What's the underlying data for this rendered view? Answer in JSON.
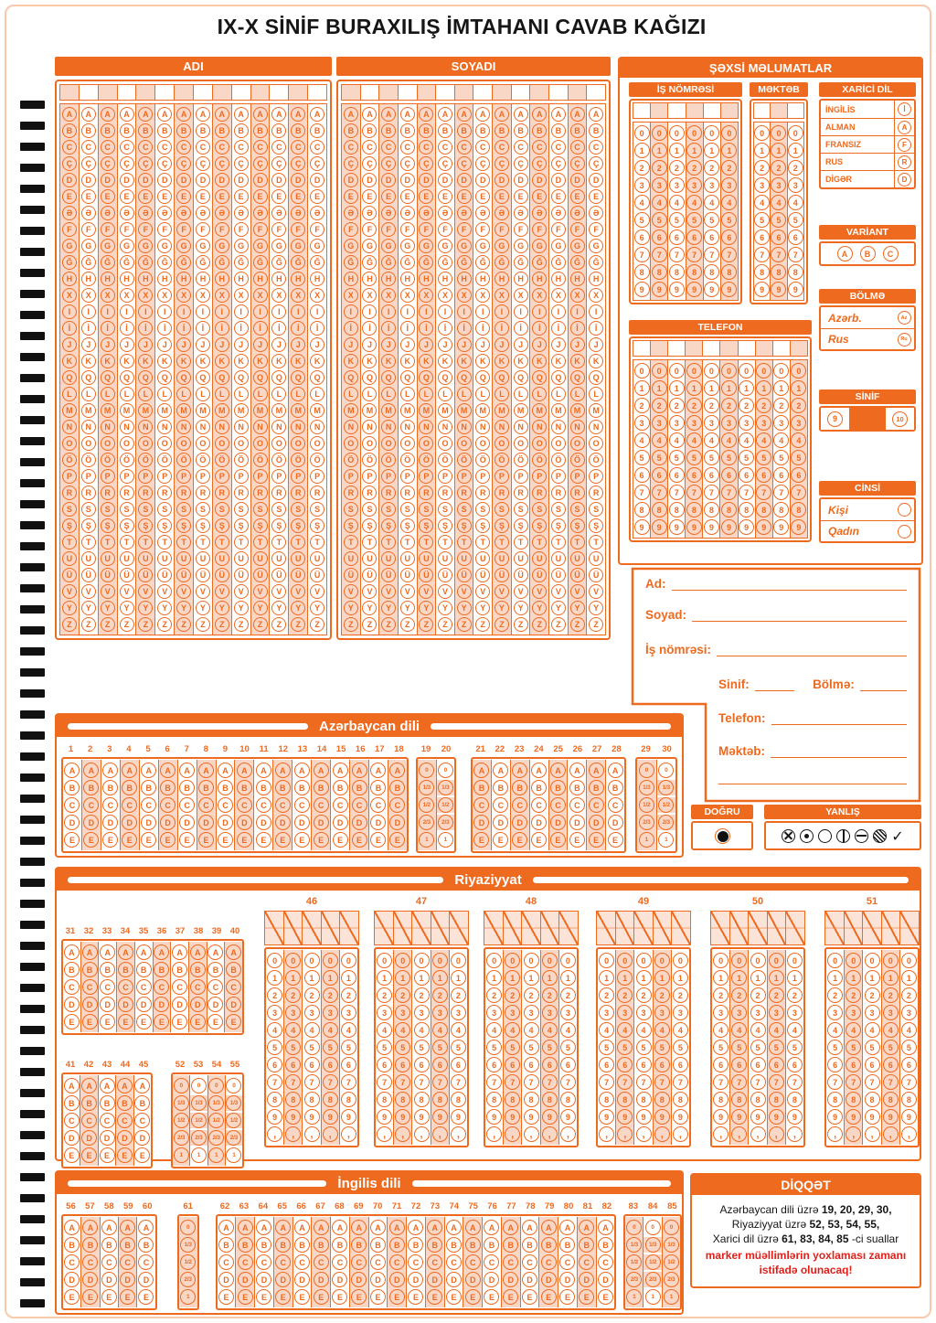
{
  "title": "IX-X SİNİF BURAXILIŞ İMTAHANI CAVAB KAĞIZI",
  "colors": {
    "accent": "#EE6A1F",
    "shade": "#F9D7C6",
    "warning_red": "#E31E18",
    "mark_black": "#111111"
  },
  "timing_marks": {
    "count": 58
  },
  "alphabet": [
    "A",
    "B",
    "C",
    "Ç",
    "D",
    "E",
    "Ə",
    "F",
    "G",
    "Ğ",
    "H",
    "X",
    "I",
    "İ",
    "J",
    "K",
    "Q",
    "L",
    "M",
    "N",
    "O",
    "Ö",
    "P",
    "R",
    "S",
    "Ş",
    "T",
    "U",
    "Ü",
    "V",
    "Y",
    "Z"
  ],
  "digits": [
    "0",
    "1",
    "2",
    "3",
    "4",
    "5",
    "6",
    "7",
    "8",
    "9"
  ],
  "choice_letters": [
    "A",
    "B",
    "C",
    "D",
    "E"
  ],
  "fractions": [
    "0",
    "1/3",
    "1/2",
    "2/3",
    "1"
  ],
  "decimal_comma": ",",
  "name_grid": {
    "title": "ADI",
    "columns": 14,
    "shade_start": true
  },
  "surname_grid": {
    "title": "SOYADI",
    "columns": 14,
    "shade_start": true
  },
  "personal": {
    "title": "ŞƏXSİ MƏLUMATLAR",
    "work_number": {
      "title": "İŞ NÖMRƏSİ",
      "columns": 6,
      "shade_start": false
    },
    "school": {
      "title": "MƏKTƏB",
      "columns": 3,
      "shade_start": false
    },
    "phone": {
      "title": "TELEFON",
      "columns": 10,
      "shade_start": false
    },
    "foreign_language": {
      "title": "XARİCİ DİL",
      "options": [
        {
          "label": "İNGİLİS",
          "bubble": "İ"
        },
        {
          "label": "ALMAN",
          "bubble": "A"
        },
        {
          "label": "FRANSIZ",
          "bubble": "F"
        },
        {
          "label": "RUS",
          "bubble": "R"
        },
        {
          "label": "DİGƏR",
          "bubble": "D"
        }
      ]
    },
    "variant": {
      "title": "VARİANT",
      "options": [
        "A",
        "B",
        "C"
      ]
    },
    "section": {
      "title": "BÖLMƏ",
      "options": [
        {
          "label": "Azərb.",
          "bubble": "Az"
        },
        {
          "label": "Rus",
          "bubble": "Ru"
        }
      ]
    },
    "grade": {
      "title": "SİNİF",
      "options": [
        "9",
        "10"
      ]
    },
    "gender": {
      "title": "CİNSİ",
      "options": [
        "Kişi",
        "Qadın"
      ]
    }
  },
  "write_in": {
    "name_label": "Ad:",
    "surname_label": "Soyad:",
    "work_number_label": "İş nömrəsi:",
    "grade_label": "Sinif:",
    "section_label": "Bölmə:",
    "phone_label": "Telefon:",
    "school_label": "Məktəb:"
  },
  "marking": {
    "correct_title": "DOĞRU",
    "wrong_title": "YANLIŞ",
    "wrong_icons": [
      "crossed-circle",
      "dot-circle",
      "empty-circle",
      "vertical-line-circle",
      "horizontal-line-circle",
      "hatched-circle",
      "checkmark"
    ],
    "checkmark_glyph": "✓"
  },
  "subjects": [
    {
      "title": "Azərbaycan dili",
      "blocks": [
        {
          "kind": "choice",
          "start": 1,
          "end": 18,
          "shade_start": false
        },
        {
          "kind": "fraction",
          "start": 19,
          "end": 20,
          "shade_start": true
        },
        {
          "kind": "choice",
          "start": 21,
          "end": 28,
          "shade_start": true
        },
        {
          "kind": "fraction",
          "start": 29,
          "end": 30,
          "shade_start": true
        }
      ]
    },
    {
      "title": "Riyaziyyat",
      "blocks": [
        {
          "kind": "choice",
          "start": 31,
          "end": 40,
          "shade_start": false
        },
        {
          "kind": "choice",
          "start": 41,
          "end": 45,
          "shade_start": false
        },
        {
          "kind": "fraction",
          "start": 52,
          "end": 55,
          "shade_start": true
        },
        {
          "kind": "numeric",
          "number": "46"
        },
        {
          "kind": "numeric",
          "number": "47"
        },
        {
          "kind": "numeric",
          "number": "48"
        },
        {
          "kind": "numeric",
          "number": "49"
        },
        {
          "kind": "numeric",
          "number": "50"
        },
        {
          "kind": "numeric",
          "number": "51"
        }
      ]
    },
    {
      "title": "İngilis dili",
      "blocks": [
        {
          "kind": "choice",
          "start": 56,
          "end": 60,
          "shade_start": false
        },
        {
          "kind": "fraction",
          "start": 61,
          "end": 61,
          "shade_start": true
        },
        {
          "kind": "choice",
          "start": 62,
          "end": 82,
          "shade_start": false
        },
        {
          "kind": "fraction",
          "start": 83,
          "end": 85,
          "shade_start": true
        }
      ]
    }
  ],
  "attention": {
    "title": "DİQQƏT",
    "lines": [
      {
        "prefix": "Azərbaycan dili üzrə ",
        "numbers": "19, 20, 29, 30,",
        "suffix": ""
      },
      {
        "prefix": "Riyaziyyat üzrə ",
        "numbers": "52, 53, 54, 55,",
        "suffix": ""
      },
      {
        "prefix": "Xarici dil üzrə ",
        "numbers": "61, 83, 84, 85",
        "suffix": " -ci suallar"
      }
    ],
    "warning": "marker müəllimlərin yoxlaması zamanı istifadə olunacaq!"
  }
}
